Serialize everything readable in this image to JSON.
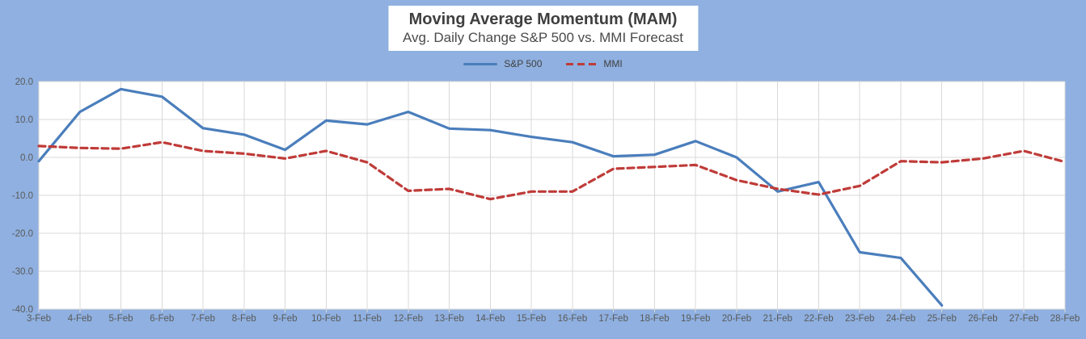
{
  "window": {
    "background": "#8fb0e0",
    "plot_background": "#ffffff",
    "gridline_color": "#d9d9d9",
    "axis_label_color": "#595959"
  },
  "header": {
    "title": "Moving Average Momentum (MAM)",
    "subtitle": "Avg. Daily Change S&P 500 vs. MMI Forecast"
  },
  "legend": [
    {
      "label": "S&P 500",
      "color": "#4a7ebc",
      "style": "solid"
    },
    {
      "label": "MMI",
      "color": "#bf3b38",
      "style": "dashed"
    }
  ],
  "chart_data": {
    "type": "line",
    "title": "Moving Average Momentum (MAM)",
    "subtitle": "Avg. Daily Change S&P 500 vs. MMI Forecast",
    "categories": [
      "3-Feb",
      "4-Feb",
      "5-Feb",
      "6-Feb",
      "7-Feb",
      "8-Feb",
      "9-Feb",
      "10-Feb",
      "11-Feb",
      "12-Feb",
      "13-Feb",
      "14-Feb",
      "15-Feb",
      "16-Feb",
      "17-Feb",
      "18-Feb",
      "19-Feb",
      "20-Feb",
      "21-Feb",
      "22-Feb",
      "23-Feb",
      "24-Feb",
      "25-Feb",
      "26-Feb",
      "27-Feb",
      "28-Feb"
    ],
    "series": [
      {
        "name": "S&P 500",
        "color": "#4a7ebc",
        "dash": false,
        "values": [
          -1.0,
          12.0,
          18.0,
          16.0,
          7.7,
          6.0,
          2.0,
          9.7,
          8.7,
          12.0,
          7.6,
          7.2,
          5.4,
          4.0,
          0.3,
          0.7,
          4.3,
          0.0,
          -9.0,
          -6.5,
          -25.0,
          -26.5,
          -39.0,
          null,
          null,
          null
        ]
      },
      {
        "name": "MMI",
        "color": "#bf3b38",
        "dash": true,
        "values": [
          3.0,
          2.5,
          2.3,
          4.0,
          1.7,
          1.0,
          -0.3,
          1.7,
          -1.3,
          -8.8,
          -8.3,
          -11.0,
          -9.0,
          -9.0,
          -3.0,
          -2.5,
          -2.0,
          -6.0,
          -8.3,
          -9.8,
          -7.5,
          -1.0,
          -1.3,
          -0.3,
          1.7,
          -1.2
        ]
      }
    ],
    "xlabel": "",
    "ylabel": "",
    "ylim": [
      -40,
      20
    ],
    "ytick_step": 10,
    "ytick_labels": [
      "20.0",
      "10.0",
      "0.0",
      "-10.0",
      "-20.0",
      "-30.0",
      "-40.0"
    ],
    "grid": true,
    "legend_position": "top-center"
  }
}
